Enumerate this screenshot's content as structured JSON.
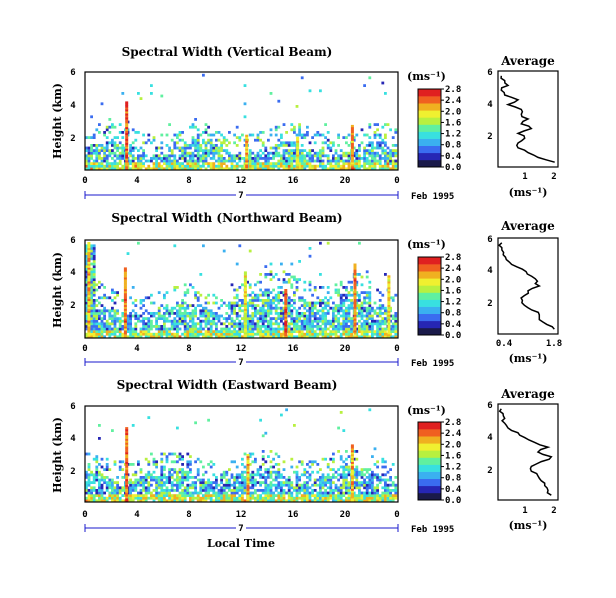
{
  "colors": {
    "scale": [
      "#1a1a4a",
      "#2626b4",
      "#3a6cf0",
      "#3ab0f0",
      "#38e0e0",
      "#60f0a0",
      "#b8f040",
      "#f0f030",
      "#f0b020",
      "#f06020",
      "#e02020"
    ],
    "axis": "#000000",
    "timeline": "#1a1acc"
  },
  "chart_data": [
    {
      "type": "heatmap",
      "name": "vertical",
      "title": "Spectral Width (Vertical Beam)",
      "ylabel": "Height (km)",
      "xlim": [
        0,
        24
      ],
      "x_ticks": [
        "0",
        "4",
        "8",
        "12",
        "16",
        "20",
        "0"
      ],
      "ylim": [
        0,
        6
      ],
      "y_ticks": [
        "2",
        "4",
        "6"
      ],
      "colorbar_label": "(ms⁻¹)",
      "colorbar_ticks": [
        "0.0",
        "0.4",
        "0.8",
        "1.2",
        "1.6",
        "2.0",
        "2.4",
        "2.8"
      ],
      "colorbar_range": [
        0,
        2.8
      ],
      "date_day": "7",
      "date_label": "Feb 1995",
      "columns": [
        {
          "t": 3.2,
          "top": 4.2,
          "w": 2.7
        },
        {
          "t": 12.4,
          "top": 2.1,
          "w": 2.4
        },
        {
          "t": 16.3,
          "top": 2.0,
          "w": 2.2
        },
        {
          "t": 20.5,
          "top": 2.7,
          "w": 2.6
        }
      ],
      "average": {
        "title": "Average",
        "xlabel": "(ms⁻¹)",
        "x_ticks": [
          "1",
          "2"
        ],
        "xlim": [
          0.3,
          2.1
        ],
        "y_ticks": [
          "2",
          "4",
          "6"
        ],
        "profile": [
          [
            0.3,
            2.0
          ],
          [
            0.6,
            1.5
          ],
          [
            0.9,
            1.2
          ],
          [
            1.2,
            0.9
          ],
          [
            1.5,
            0.9
          ],
          [
            1.8,
            1.1
          ],
          [
            2.1,
            0.9
          ],
          [
            2.4,
            1.3
          ],
          [
            2.7,
            1.0
          ],
          [
            3.0,
            1.2
          ],
          [
            3.3,
            1.0
          ],
          [
            3.6,
            1.0
          ],
          [
            3.9,
            0.6
          ],
          [
            4.2,
            0.9
          ],
          [
            4.5,
            0.5
          ],
          [
            4.8,
            0.4
          ],
          [
            5.1,
            0.6
          ],
          [
            5.4,
            0.5
          ],
          [
            5.7,
            0.4
          ]
        ]
      }
    },
    {
      "type": "heatmap",
      "name": "northward",
      "title": "Spectral Width (Northward Beam)",
      "ylabel": "Height (km)",
      "xlim": [
        0,
        24
      ],
      "x_ticks": [
        "0",
        "4",
        "8",
        "12",
        "16",
        "20",
        "0"
      ],
      "ylim": [
        0,
        6
      ],
      "y_ticks": [
        "2",
        "4",
        "6"
      ],
      "colorbar_label": "(ms⁻¹)",
      "colorbar_ticks": [
        "0.0",
        "0.4",
        "0.8",
        "1.2",
        "1.6",
        "2.0",
        "2.4",
        "2.8"
      ],
      "colorbar_range": [
        0,
        2.8
      ],
      "date_day": "7",
      "date_label": "Feb 1995",
      "columns": [
        {
          "t": 0.3,
          "top": 5.8,
          "w": 2.4
        },
        {
          "t": 3.1,
          "top": 4.3,
          "w": 2.6
        },
        {
          "t": 12.3,
          "top": 4.0,
          "w": 2.2
        },
        {
          "t": 15.4,
          "top": 3.0,
          "w": 2.7
        },
        {
          "t": 20.7,
          "top": 4.5,
          "w": 2.6
        },
        {
          "t": 23.3,
          "top": 3.8,
          "w": 2.2
        }
      ],
      "average": {
        "title": "Average",
        "xlabel": "(ms⁻¹)",
        "x_ticks": [
          "0.4",
          "1.8"
        ],
        "xlim": [
          0.3,
          1.9
        ],
        "y_ticks": [
          "2",
          "4",
          "6"
        ],
        "profile": [
          [
            0.3,
            1.8
          ],
          [
            0.6,
            1.6
          ],
          [
            0.9,
            1.4
          ],
          [
            1.2,
            1.4
          ],
          [
            1.5,
            1.2
          ],
          [
            1.8,
            1.0
          ],
          [
            2.1,
            0.95
          ],
          [
            2.4,
            1.0
          ],
          [
            2.7,
            1.1
          ],
          [
            3.0,
            1.4
          ],
          [
            3.3,
            1.35
          ],
          [
            3.6,
            1.2
          ],
          [
            3.9,
            1.05
          ],
          [
            4.2,
            0.8
          ],
          [
            4.5,
            0.6
          ],
          [
            4.8,
            0.5
          ],
          [
            5.1,
            0.45
          ],
          [
            5.4,
            0.4
          ],
          [
            5.7,
            0.4
          ]
        ]
      }
    },
    {
      "type": "heatmap",
      "name": "eastward",
      "title": "Spectral Width (Eastward Beam)",
      "ylabel": "Height (km)",
      "xlim": [
        0,
        24
      ],
      "x_ticks": [
        "0",
        "4",
        "8",
        "12",
        "16",
        "20",
        "0"
      ],
      "xlabel": "Local Time",
      "ylim": [
        0,
        6
      ],
      "y_ticks": [
        "2",
        "4",
        "6"
      ],
      "colorbar_label": "(ms⁻¹)",
      "colorbar_ticks": [
        "0.0",
        "0.4",
        "0.8",
        "1.2",
        "1.6",
        "2.0",
        "2.4",
        "2.8"
      ],
      "colorbar_range": [
        0,
        2.8
      ],
      "date_day": "7",
      "date_label": "Feb 1995",
      "columns": [
        {
          "t": 3.2,
          "top": 4.6,
          "w": 2.7
        },
        {
          "t": 12.5,
          "top": 3.0,
          "w": 2.4
        },
        {
          "t": 20.5,
          "top": 3.5,
          "w": 2.5
        }
      ],
      "average": {
        "title": "Average",
        "xlabel": "(ms⁻¹)",
        "x_ticks": [
          "1",
          "2"
        ],
        "xlim": [
          0.3,
          2.1
        ],
        "y_ticks": [
          "2",
          "4",
          "6"
        ],
        "profile": [
          [
            0.3,
            1.9
          ],
          [
            0.6,
            1.8
          ],
          [
            0.9,
            1.7
          ],
          [
            1.2,
            1.6
          ],
          [
            1.5,
            1.5
          ],
          [
            1.8,
            1.3
          ],
          [
            2.1,
            1.3
          ],
          [
            2.4,
            1.6
          ],
          [
            2.7,
            1.9
          ],
          [
            3.0,
            1.5
          ],
          [
            3.3,
            1.8
          ],
          [
            3.6,
            1.4
          ],
          [
            3.9,
            1.1
          ],
          [
            4.2,
            0.9
          ],
          [
            4.5,
            0.6
          ],
          [
            4.8,
            0.5
          ],
          [
            5.1,
            0.5
          ],
          [
            5.4,
            0.45
          ],
          [
            5.7,
            0.4
          ]
        ]
      }
    }
  ]
}
